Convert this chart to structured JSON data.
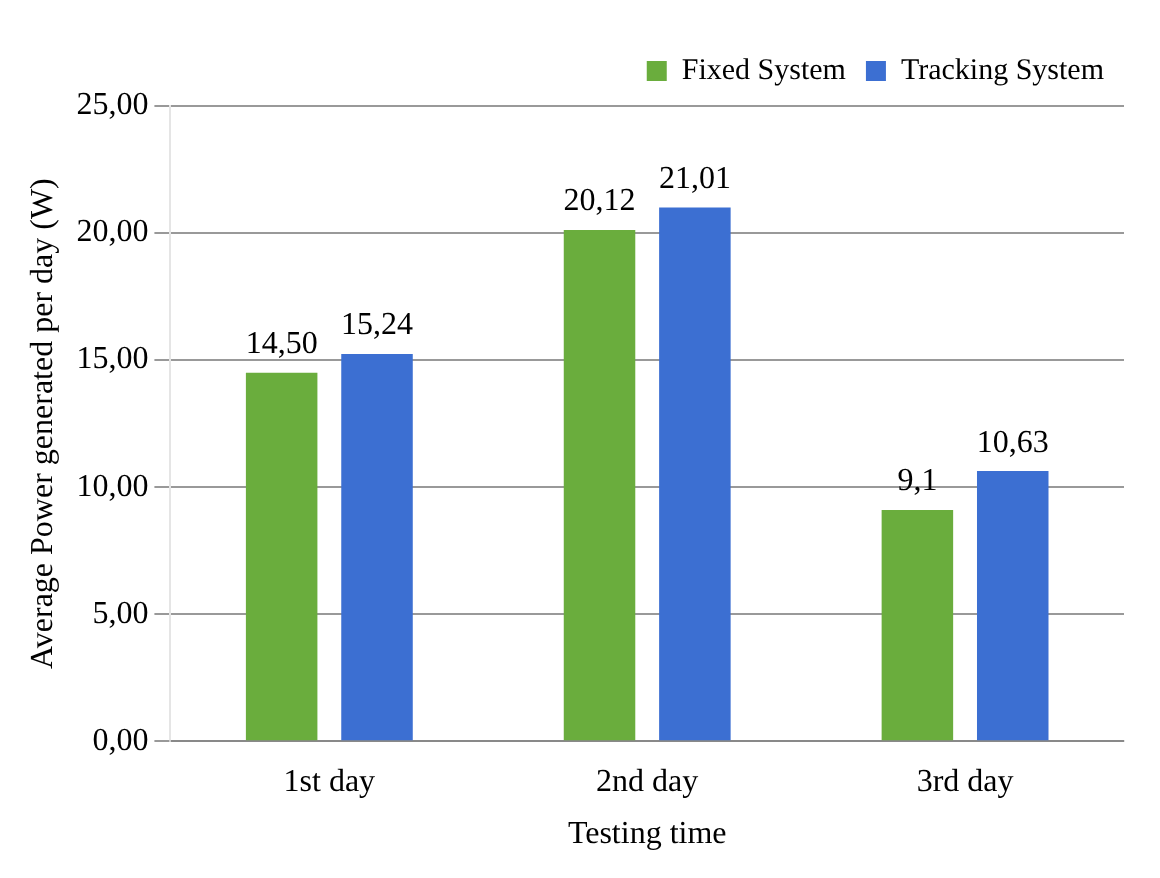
{
  "chart_data": {
    "type": "bar",
    "xlabel": "Testing time",
    "ylabel": "Average Power generated per day (W)",
    "categories": [
      "1st day",
      "2nd day",
      "3rd day"
    ],
    "series": [
      {
        "name": "Fixed System",
        "color": "#6aad3d",
        "values": [
          14.5,
          20.12,
          9.1
        ],
        "value_labels": [
          "14,50",
          "20,12",
          "9,1"
        ]
      },
      {
        "name": "Tracking System",
        "color": "#3c6fd2",
        "values": [
          15.24,
          21.01,
          10.63
        ],
        "value_labels": [
          "15,24",
          "21,01",
          "10,63"
        ]
      }
    ],
    "ylim": [
      0,
      25
    ],
    "yticks": [
      {
        "value": 0,
        "label": "0,00"
      },
      {
        "value": 5,
        "label": "5,00"
      },
      {
        "value": 10,
        "label": "10,00"
      },
      {
        "value": 15,
        "label": "15,00"
      },
      {
        "value": 20,
        "label": "20,00"
      },
      {
        "value": 25,
        "label": "25,00"
      }
    ],
    "grid": "y",
    "legend": "top right"
  }
}
